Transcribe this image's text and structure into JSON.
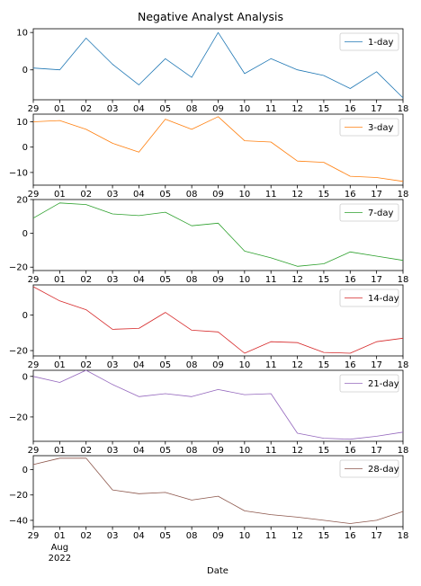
{
  "chart_data": {
    "type": "line",
    "title": "Negative Analyst Analysis",
    "xlabel": "Date",
    "x_ticks": [
      "29",
      "01",
      "02",
      "03",
      "04",
      "05",
      "08",
      "09",
      "10",
      "11",
      "12",
      "15",
      "16",
      "17",
      "18"
    ],
    "x_secondary_labels": [
      "Aug",
      "2022"
    ],
    "legend_position": "upper right",
    "grid": false,
    "panels": [
      {
        "name": "1-day",
        "color": "#1f77b4",
        "ylim": [
          -8,
          11
        ],
        "yticks": [
          10,
          0
        ],
        "values": [
          0.5,
          0,
          8.5,
          1.5,
          -4,
          3,
          -2,
          10,
          -1,
          3,
          0,
          -1.5,
          -5,
          -0.5,
          -7.5
        ]
      },
      {
        "name": "3-day",
        "color": "#ff7f0e",
        "ylim": [
          -15,
          13
        ],
        "yticks": [
          10,
          0,
          -10
        ],
        "values": [
          10,
          10.5,
          7,
          1.5,
          -2,
          11,
          7,
          12,
          2.5,
          2,
          -5.5,
          -6,
          -11.5,
          -12,
          -13.5
        ]
      },
      {
        "name": "7-day",
        "color": "#2ca02c",
        "ylim": [
          -22,
          20
        ],
        "yticks": [
          20,
          0,
          -20
        ],
        "values": [
          9,
          18,
          17,
          11.5,
          10.5,
          12.5,
          4.5,
          6,
          -10.5,
          -14.5,
          -19.5,
          -18,
          -11,
          -13.5,
          -16
        ]
      },
      {
        "name": "14-day",
        "color": "#d62728",
        "ylim": [
          -23,
          17
        ],
        "yticks": [
          0,
          -20
        ],
        "values": [
          16,
          8,
          3,
          -8,
          -7.5,
          1.5,
          -8.5,
          -9.5,
          -21.5,
          -15,
          -15.5,
          -21,
          -21.5,
          -15,
          -13
        ]
      },
      {
        "name": "21-day",
        "color": "#9467bd",
        "ylim": [
          -32,
          3
        ],
        "yticks": [
          0,
          -20
        ],
        "values": [
          0,
          -3,
          3,
          -4,
          -10,
          -8.5,
          -10,
          -6.5,
          -9,
          -8.5,
          -28,
          -30.5,
          -31,
          -29.5,
          -27.5
        ]
      },
      {
        "name": "28-day",
        "color": "#8c564b",
        "ylim": [
          -45,
          11
        ],
        "yticks": [
          0,
          -20,
          -40
        ],
        "values": [
          4,
          9,
          9,
          -16,
          -19,
          -18,
          -24,
          -21,
          -32.5,
          -35.5,
          -37.5,
          -40,
          -42.5,
          -40,
          -33
        ]
      }
    ]
  }
}
